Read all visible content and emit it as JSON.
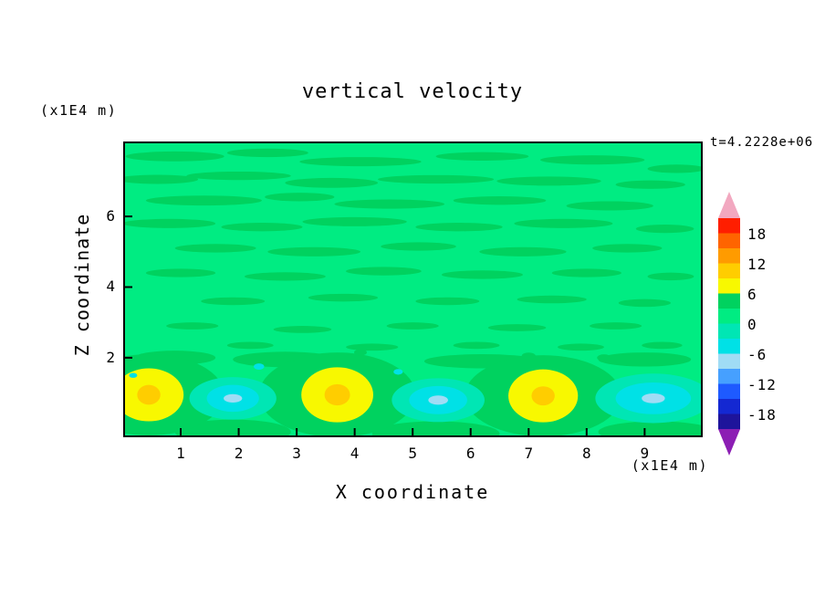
{
  "title": "vertical velocity",
  "time_label": "t=4.2228e+06",
  "x_axis": {
    "label": "X coordinate",
    "units": "(x1E4 m)",
    "tick_values": [
      1,
      2,
      3,
      4,
      5,
      6,
      7,
      8,
      9
    ]
  },
  "y_axis": {
    "label": "Z coordinate",
    "units": "(x1E4 m)",
    "tick_values": [
      2,
      4,
      6
    ]
  },
  "colorbar": {
    "labels": [
      "18",
      "12",
      "6",
      "0",
      "-6",
      "-12",
      "-18"
    ],
    "bands_top_to_bottom": [
      "#ff1e00",
      "#ff6400",
      "#ff9b00",
      "#ffcd00",
      "#f8f800",
      "#00d25f",
      "#00ec82",
      "#00e6b4",
      "#00e1e6",
      "#a0dcf5",
      "#46a0ff",
      "#1e5aff",
      "#1428d2",
      "#1e149b"
    ],
    "arrow_top": "#f2a8c0",
    "arrow_bottom": "#8c1eb4"
  },
  "chart_data": {
    "type": "contour",
    "title": "vertical velocity",
    "xlabel": "X coordinate (x1E4 m)",
    "ylabel": "Z coordinate (x1E4 m)",
    "time_annotation": "t=4.2228e+06",
    "x_range": [
      0.04,
      9.97
    ],
    "z_range": [
      -0.2,
      8.07
    ],
    "x_ticks": [
      1,
      2,
      3,
      4,
      5,
      6,
      7,
      8,
      9
    ],
    "z_ticks": [
      2,
      4,
      6
    ],
    "contour_interval": 3,
    "level_labels": [
      18,
      12,
      6,
      0,
      -6,
      -12,
      -18
    ],
    "field_description": "Near-zero (0 to 3) green background with thin deeper-green streak bands (3 to 6) aloft; below z=2 a wave train of updraft cells (yellow/orange cores, 6 to 12) alternating with downdraft cells (cyan with pale cores, -9 to -3), horizontal wavelength about 3.5 x1E4 m.",
    "palette": {
      "background": "#00ec82",
      "deep_green": "#00d25f",
      "yellow": "#f8f800",
      "orange_core": "#ffcd00",
      "aqua": "#00e6b4",
      "cyan": "#00e1e6",
      "pale_core": "#a0dcf5"
    },
    "streaks": [
      [
        0.9,
        7.7,
        0.85,
        0.14
      ],
      [
        2.5,
        7.8,
        0.7,
        0.12
      ],
      [
        4.1,
        7.55,
        1.05,
        0.13
      ],
      [
        6.2,
        7.7,
        0.8,
        0.12
      ],
      [
        8.1,
        7.6,
        0.9,
        0.13
      ],
      [
        9.55,
        7.35,
        0.5,
        0.12
      ],
      [
        0.6,
        7.05,
        0.7,
        0.13
      ],
      [
        2.0,
        7.15,
        0.9,
        0.12
      ],
      [
        3.6,
        6.95,
        0.8,
        0.14
      ],
      [
        5.4,
        7.05,
        1.0,
        0.12
      ],
      [
        7.35,
        7.0,
        0.9,
        0.13
      ],
      [
        9.1,
        6.9,
        0.6,
        0.12
      ],
      [
        1.4,
        6.45,
        1.0,
        0.14
      ],
      [
        3.05,
        6.55,
        0.6,
        0.12
      ],
      [
        4.6,
        6.35,
        0.95,
        0.13
      ],
      [
        6.5,
        6.45,
        0.8,
        0.12
      ],
      [
        8.4,
        6.3,
        0.75,
        0.13
      ],
      [
        0.8,
        5.8,
        0.8,
        0.13
      ],
      [
        2.4,
        5.7,
        0.7,
        0.12
      ],
      [
        4.0,
        5.85,
        0.9,
        0.13
      ],
      [
        5.8,
        5.7,
        0.75,
        0.12
      ],
      [
        7.6,
        5.8,
        0.85,
        0.13
      ],
      [
        9.35,
        5.65,
        0.5,
        0.12
      ],
      [
        1.6,
        5.1,
        0.7,
        0.12
      ],
      [
        3.3,
        5.0,
        0.8,
        0.13
      ],
      [
        5.1,
        5.15,
        0.65,
        0.12
      ],
      [
        6.9,
        5.0,
        0.75,
        0.13
      ],
      [
        8.7,
        5.1,
        0.6,
        0.12
      ],
      [
        1.0,
        4.4,
        0.6,
        0.12
      ],
      [
        2.8,
        4.3,
        0.7,
        0.12
      ],
      [
        4.5,
        4.45,
        0.65,
        0.12
      ],
      [
        6.2,
        4.35,
        0.7,
        0.12
      ],
      [
        8.0,
        4.4,
        0.6,
        0.12
      ],
      [
        9.45,
        4.3,
        0.4,
        0.11
      ],
      [
        1.9,
        3.6,
        0.55,
        0.11
      ],
      [
        3.8,
        3.7,
        0.6,
        0.11
      ],
      [
        5.6,
        3.6,
        0.55,
        0.11
      ],
      [
        7.4,
        3.65,
        0.6,
        0.11
      ],
      [
        9.0,
        3.55,
        0.45,
        0.11
      ],
      [
        1.2,
        2.9,
        0.45,
        0.1
      ],
      [
        3.1,
        2.8,
        0.5,
        0.1
      ],
      [
        5.0,
        2.9,
        0.45,
        0.1
      ],
      [
        6.8,
        2.85,
        0.5,
        0.1
      ],
      [
        8.5,
        2.9,
        0.45,
        0.1
      ],
      [
        2.2,
        2.35,
        0.4,
        0.1
      ],
      [
        4.3,
        2.3,
        0.45,
        0.1
      ],
      [
        6.1,
        2.35,
        0.4,
        0.1
      ],
      [
        7.9,
        2.3,
        0.4,
        0.1
      ],
      [
        9.3,
        2.35,
        0.35,
        0.1
      ]
    ],
    "updrafts": [
      {
        "x": 0.45,
        "z": 0.95,
        "halo": [
          1.3,
          1.15
        ],
        "yellow": [
          0.6,
          0.75
        ],
        "core": [
          0.2,
          0.28
        ]
      },
      {
        "x": 3.7,
        "z": 0.95,
        "halo": [
          1.35,
          1.2
        ],
        "yellow": [
          0.62,
          0.78
        ],
        "core": [
          0.22,
          0.3
        ]
      },
      {
        "x": 7.25,
        "z": 0.92,
        "halo": [
          1.35,
          1.15
        ],
        "yellow": [
          0.6,
          0.75
        ],
        "core": [
          0.2,
          0.27
        ]
      }
    ],
    "downdrafts": [
      {
        "x": 1.9,
        "z": 0.85,
        "aqua": [
          0.75,
          0.6
        ],
        "cyan": [
          0.45,
          0.38
        ],
        "core": [
          0.16,
          0.12
        ]
      },
      {
        "x": 5.44,
        "z": 0.8,
        "aqua": [
          0.8,
          0.62
        ],
        "cyan": [
          0.5,
          0.4
        ],
        "core": [
          0.17,
          0.13
        ]
      },
      {
        "x": 9.15,
        "z": 0.85,
        "aqua": [
          1.0,
          0.7
        ],
        "cyan": [
          0.65,
          0.45
        ],
        "core": [
          0.2,
          0.14
        ]
      }
    ],
    "deep_patches": [
      {
        "x": 0.9,
        "z": 2.0,
        "rx": 0.7,
        "rz": 0.2
      },
      {
        "x": 2.8,
        "z": 1.95,
        "rx": 0.9,
        "rz": 0.22
      },
      {
        "x": 6.2,
        "z": 1.9,
        "rx": 1.0,
        "rz": 0.2
      },
      {
        "x": 9.0,
        "z": 1.95,
        "rx": 0.8,
        "rz": 0.2
      },
      {
        "x": 1.9,
        "z": -0.1,
        "rx": 1.0,
        "rz": 0.35
      },
      {
        "x": 5.4,
        "z": -0.15,
        "rx": 1.1,
        "rz": 0.35
      },
      {
        "x": 9.2,
        "z": -0.1,
        "rx": 1.0,
        "rz": 0.3
      }
    ],
    "specks_cyan": [
      [
        2.35,
        1.75,
        0.09
      ],
      [
        0.18,
        1.5,
        0.07
      ],
      [
        4.75,
        1.6,
        0.08
      ]
    ],
    "specks_deep": [
      [
        2.9,
        2.0,
        0.13
      ],
      [
        5.9,
        1.95,
        0.12
      ],
      [
        7.0,
        2.05,
        0.12
      ],
      [
        4.1,
        2.15,
        0.11
      ],
      [
        8.3,
        2.0,
        0.12
      ]
    ]
  }
}
